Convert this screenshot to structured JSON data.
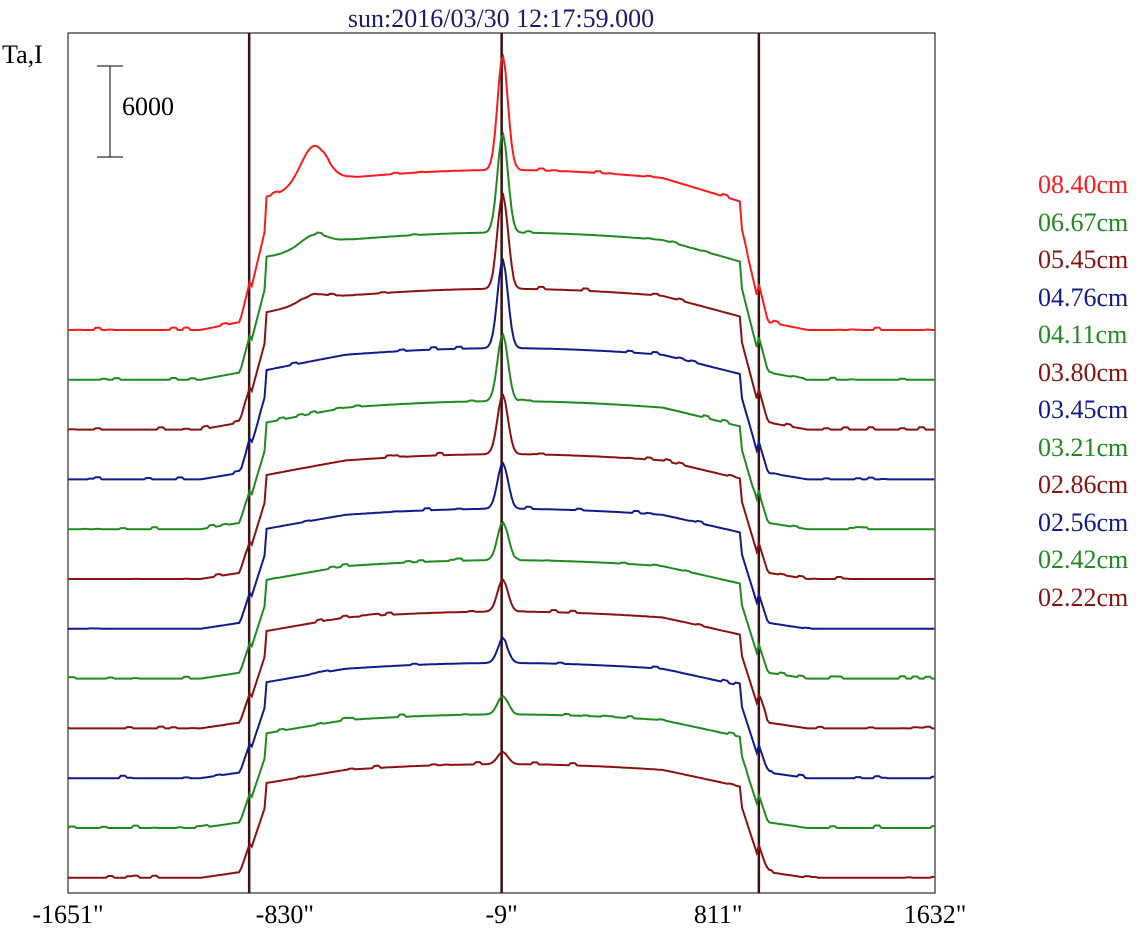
{
  "chart_data": {
    "type": "line",
    "title": "sun:2016/03/30 12:17:59.000",
    "ylabel": "Ta,I",
    "xlabel": "",
    "x_ticks": [
      "-1651\"",
      "-830\"",
      "-9\"",
      "811\"",
      "1632\""
    ],
    "x_tick_values": [
      -1651,
      -830,
      -9,
      811,
      1632
    ],
    "xlim": [
      -1651,
      1632
    ],
    "vlines": [
      -965,
      -9,
      965
    ],
    "scale_bar": {
      "label": "6000",
      "value": 6000
    },
    "grid": false,
    "legend_position": "right",
    "series": [
      {
        "name": "08.40cm",
        "color": "#ff1a1a",
        "baseline": 0,
        "height": 1.0,
        "peak": 7400,
        "lumps": [
          [
            -720,
            2600
          ]
        ]
      },
      {
        "name": "06.67cm",
        "color": "#1f8a1f",
        "baseline": 1,
        "height": 0.92,
        "peak": 6500,
        "lumps": [
          [
            -720,
            800
          ]
        ]
      },
      {
        "name": "05.45cm",
        "color": "#8b1010",
        "baseline": 2,
        "height": 0.88,
        "peak": 6200,
        "lumps": [
          [
            -720,
            500
          ]
        ]
      },
      {
        "name": "04.76cm",
        "color": "#101a8b",
        "baseline": 3,
        "height": 0.82,
        "peak": 5800,
        "lumps": []
      },
      {
        "name": "04.11cm",
        "color": "#1f8a1f",
        "baseline": 4,
        "height": 0.8,
        "peak": 4400,
        "lumps": []
      },
      {
        "name": "03.80cm",
        "color": "#8b1010",
        "baseline": 5,
        "height": 0.78,
        "peak": 3900,
        "lumps": []
      },
      {
        "name": "03.45cm",
        "color": "#101a8b",
        "baseline": 6,
        "height": 0.75,
        "peak": 3000,
        "lumps": []
      },
      {
        "name": "03.21cm",
        "color": "#1f8a1f",
        "baseline": 7,
        "height": 0.74,
        "peak": 2500,
        "lumps": []
      },
      {
        "name": "02.86cm",
        "color": "#8b1010",
        "baseline": 8,
        "height": 0.73,
        "peak": 2100,
        "lumps": []
      },
      {
        "name": "02.56cm",
        "color": "#101a8b",
        "baseline": 9,
        "height": 0.72,
        "peak": 1500,
        "lumps": []
      },
      {
        "name": "02.42cm",
        "color": "#1f8a1f",
        "baseline": 10,
        "height": 0.71,
        "peak": 1200,
        "lumps": []
      },
      {
        "name": "02.22cm",
        "color": "#8b1010",
        "baseline": 11,
        "height": 0.71,
        "peak": 800,
        "lumps": []
      }
    ],
    "legend_order": [
      "08.40cm",
      "06.67cm",
      "05.45cm",
      "04.76cm",
      "04.11cm",
      "03.80cm",
      "03.45cm",
      "03.21cm",
      "02.86cm",
      "02.56cm",
      "02.42cm",
      "02.22cm"
    ]
  }
}
